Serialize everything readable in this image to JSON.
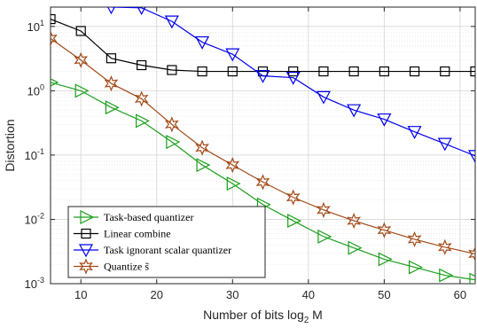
{
  "chart_data": {
    "type": "line",
    "title": "",
    "xlabel": "Number of bits log",
    "xlabel_subscript": "2",
    "xlabel_suffix": " M",
    "ylabel": "Distortion",
    "xlim": [
      6,
      62
    ],
    "ylim": [
      0.001,
      20
    ],
    "yscale": "log",
    "grid": true,
    "x_ticks": [
      10,
      20,
      30,
      40,
      50,
      60
    ],
    "x_tick_labels": [
      "10",
      "20",
      "30",
      "40",
      "50",
      "60"
    ],
    "y_ticks": [
      0.001,
      0.01,
      0.1,
      1,
      10
    ],
    "y_tick_labels": [
      {
        "base": "10",
        "exp": "-3"
      },
      {
        "base": "10",
        "exp": "-2"
      },
      {
        "base": "10",
        "exp": "-1"
      },
      {
        "base": "10",
        "exp": "0"
      },
      {
        "base": "10",
        "exp": "1"
      }
    ],
    "legend_position": "bottom-left",
    "series": [
      {
        "name": "Task-based quantizer",
        "color": "#1a9e1a",
        "marker": "triangle-right",
        "x": [
          6,
          10,
          14,
          18,
          22,
          26,
          30,
          34,
          38,
          42,
          46,
          50,
          54,
          58,
          62
        ],
        "y": [
          1.35,
          1.0,
          0.55,
          0.34,
          0.16,
          0.07,
          0.036,
          0.017,
          0.0095,
          0.0054,
          0.0036,
          0.0024,
          0.0018,
          0.00135,
          0.00115
        ]
      },
      {
        "name": "Linear combine",
        "color": "#000000",
        "marker": "square",
        "x": [
          6,
          10,
          14,
          18,
          22,
          26,
          30,
          34,
          38,
          42,
          46,
          50,
          54,
          58,
          62
        ],
        "y": [
          13,
          8.5,
          3.2,
          2.5,
          2.1,
          2.0,
          2.0,
          2.0,
          2.0,
          2.0,
          2.0,
          2.0,
          2.0,
          2.0,
          2.0
        ]
      },
      {
        "name": "Task ignorant scalar quantizer",
        "color": "#0000ee",
        "marker": "triangle-down",
        "x": [
          14,
          18,
          22,
          26,
          30,
          34,
          38,
          42,
          46,
          50,
          54,
          58,
          62
        ],
        "y": [
          20,
          19.5,
          12,
          5.7,
          3.7,
          1.7,
          1.6,
          0.8,
          0.5,
          0.36,
          0.23,
          0.15,
          0.097
        ]
      },
      {
        "name": "Quantize s̃",
        "color": "#a34a17",
        "marker": "hexagram",
        "x": [
          6,
          10,
          14,
          18,
          22,
          26,
          30,
          34,
          38,
          42,
          46,
          50,
          54,
          58,
          62
        ],
        "y": [
          6.5,
          3.0,
          1.3,
          0.75,
          0.3,
          0.13,
          0.07,
          0.038,
          0.022,
          0.014,
          0.0095,
          0.0068,
          0.0049,
          0.0037,
          0.0029
        ]
      }
    ]
  }
}
